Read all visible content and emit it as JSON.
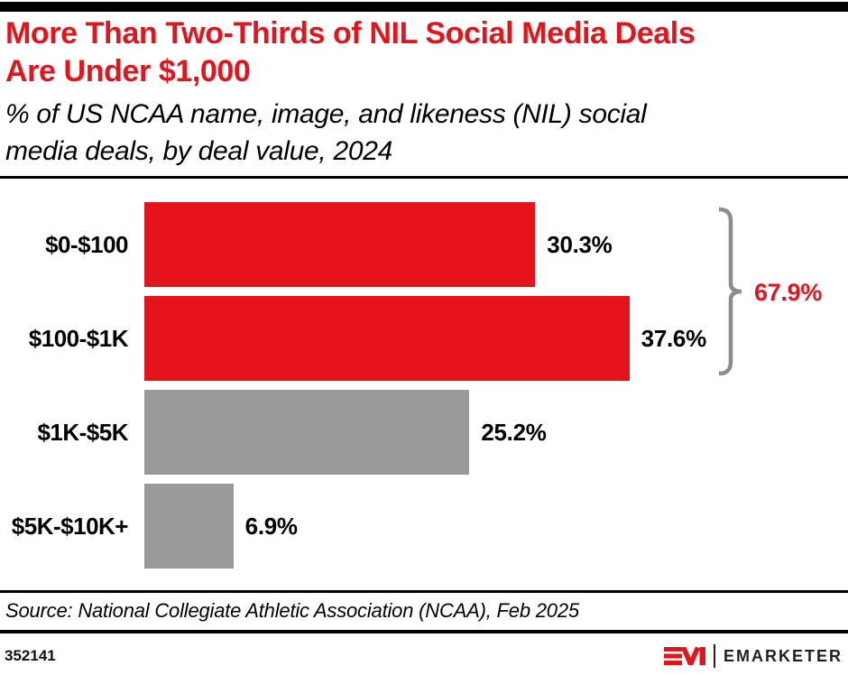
{
  "colors": {
    "accent_red": "#e5141c",
    "bar_gray": "#9a9a9a",
    "bracket_gray": "#8c8c8c",
    "wordmark_dark": "#231f20"
  },
  "header": {
    "title_line1": "More Than Two-Thirds of NIL Social Media Deals",
    "title_line2": "Are Under $1,000",
    "subtitle_line1": "% of US NCAA name, image, and likeness (NIL) social",
    "subtitle_line2": "media deals, by deal value, 2024"
  },
  "chart_data": {
    "type": "bar",
    "orientation": "horizontal",
    "title": "More Than Two-Thirds of NIL Social Media Deals Are Under $1,000",
    "subtitle": "% of US NCAA name, image, and likeness (NIL) social media deals, by deal value, 2024",
    "categories": [
      "$0-$100",
      "$100-$1K",
      "$1K-$5K",
      "$5K-$10K+"
    ],
    "values": [
      30.3,
      37.6,
      25.2,
      6.9
    ],
    "value_labels": [
      "30.3%",
      "37.6%",
      "25.2%",
      "6.9%"
    ],
    "bar_colors": [
      "#e5141c",
      "#e5141c",
      "#9a9a9a",
      "#9a9a9a"
    ],
    "xlim": [
      0,
      40
    ],
    "grid": false,
    "legend": false,
    "annotation": {
      "label": "67.9%",
      "covers": [
        "$0-$100",
        "$100-$1K"
      ]
    }
  },
  "footer": {
    "source": "Source: National Collegiate Athletic Association (NCAA), Feb 2025",
    "chart_id": "352141",
    "logo_wordmark": "EMARKETER"
  }
}
